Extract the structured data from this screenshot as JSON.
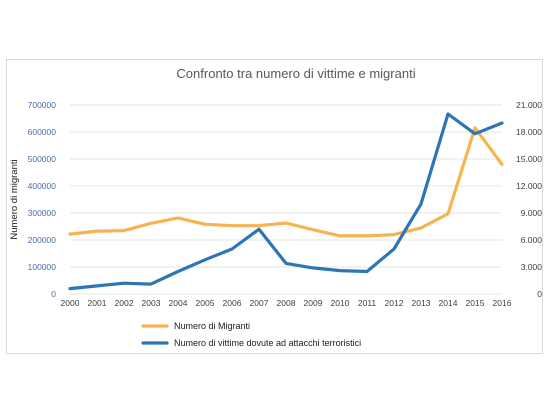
{
  "chart_data": {
    "type": "line",
    "title": "Confronto tra numero di vittime e migranti",
    "categories": [
      "2000",
      "2001",
      "2002",
      "2003",
      "2004",
      "2005",
      "2006",
      "2007",
      "2008",
      "2009",
      "2010",
      "2011",
      "2012",
      "2013",
      "2014",
      "2015",
      "2016"
    ],
    "y_left": {
      "label": "Numero di migranti",
      "range": [
        0,
        700000
      ],
      "ticks": [
        "0",
        "100000",
        "200000",
        "300000",
        "400000",
        "500000",
        "600000",
        "700000"
      ]
    },
    "y_right": {
      "label": "Numero di vittime",
      "range": [
        0,
        21000
      ],
      "ticks": [
        "0",
        "3.000",
        "6.000",
        "9.000",
        "12.000",
        "15.000",
        "18.000",
        "21.000"
      ]
    },
    "series": [
      {
        "name": "Numero di Migranti",
        "axis": "left",
        "color": "#f6b352",
        "values": [
          222000,
          233000,
          235000,
          262000,
          282000,
          258000,
          253000,
          253000,
          263000,
          238000,
          215000,
          215000,
          220000,
          245000,
          297000,
          615000,
          480000
        ]
      },
      {
        "name": "Numero di vittime dovute ad attacchi terroristici",
        "axis": "right",
        "color": "#2e75b6",
        "values": [
          600,
          900,
          1200,
          1100,
          2500,
          3800,
          5000,
          7200,
          3400,
          2900,
          2600,
          2500,
          5000,
          10000,
          20000,
          17800,
          19000
        ]
      }
    ],
    "grid": true,
    "legend_position": "bottom"
  }
}
